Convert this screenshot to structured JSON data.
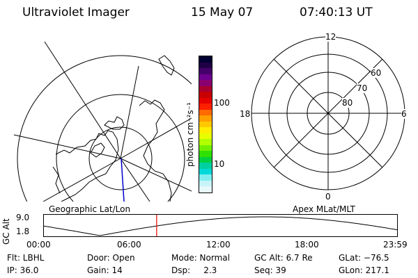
{
  "header": {
    "title": "Ultraviolet Imager",
    "date": "15 May 07",
    "time": "07:40:13 UT"
  },
  "colorbar": {
    "unit_label": "photon cm⁻²s⁻¹",
    "ticks": [
      "100",
      "10"
    ],
    "colors": [
      "#000033",
      "#200045",
      "#45006a",
      "#6e0090",
      "#8a0070",
      "#aa0030",
      "#c80000",
      "#e60000",
      "#ff2000",
      "#ff6a00",
      "#ffa000",
      "#ffc800",
      "#ffee00",
      "#e8ff00",
      "#b0ff00",
      "#70f000",
      "#30e000",
      "#00d040",
      "#00d0a0",
      "#00d8d8",
      "#80eef0",
      "#c8f4f8",
      "#e8f8fb"
    ]
  },
  "mlt_plot": {
    "labels": {
      "top": "12",
      "bottom": "0",
      "left": "18",
      "right": "6"
    },
    "lat_labels": [
      "60",
      "70",
      "80"
    ]
  },
  "panel_labels": {
    "left": "Geographic Lat/Lon",
    "right": "Apex MLat/MLT"
  },
  "alt_plot": {
    "ylabel": "GC Alt",
    "yticks": [
      "9.0",
      "1.8"
    ],
    "xticks": [
      "00:00",
      "06:00",
      "12:00",
      "18:00",
      "23:59"
    ],
    "current_time_fraction": 0.3196
  },
  "footer": {
    "flt": "Flt: LBHL",
    "ip": "IP: 36.0",
    "door": "Door: Open",
    "gain": "Gain: 14",
    "mode": "Mode: Normal",
    "dsp": "Dsp:     2.3",
    "gc_alt": "GC Alt: 6.7 Re",
    "seq": "Seq: 39",
    "glat": "GLat: −76.5",
    "glon": "GLon: 217.1"
  }
}
